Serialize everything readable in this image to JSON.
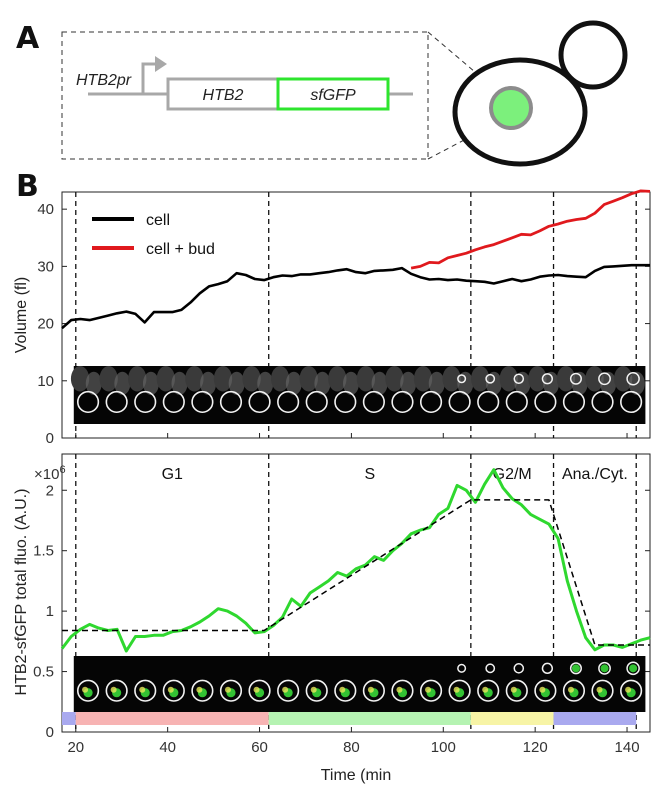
{
  "panel_a": {
    "label": "A",
    "promoter_label": "HTB2pr",
    "gene_label": "HTB2",
    "tag_label": "sfGFP"
  },
  "panel_b": {
    "label": "B"
  },
  "colors": {
    "cell": "#000000",
    "cell_bud": "#e0191d",
    "fluo": "#2fd82f",
    "fit": "#000000",
    "g1_bar": "#f7b3b3",
    "s_bar": "#b5f3b2",
    "g2m_bar": "#f7f4a6",
    "anacyt_bar": "#a9a9ef",
    "pre_bar": "#a9a9ef",
    "gfp_nucleus": "#7cf07c"
  },
  "chart_data": [
    {
      "type": "line",
      "ylabel": "Volume (fl)",
      "xlim": [
        17,
        145
      ],
      "ylim": [
        0,
        43
      ],
      "yticks": [
        0,
        10,
        20,
        30,
        40
      ],
      "grid": false,
      "legend_position": "top-left",
      "series": [
        {
          "name": "cell",
          "x": [
            17,
            19,
            21,
            23,
            25,
            27,
            29,
            31,
            33,
            35,
            37,
            39,
            41,
            43,
            45,
            47,
            49,
            51,
            53,
            55,
            57,
            59,
            61,
            63,
            65,
            67,
            69,
            71,
            73,
            75,
            77,
            79,
            81,
            83,
            85,
            87,
            89,
            91,
            93,
            95,
            97,
            99,
            101,
            103,
            105,
            107,
            109,
            111,
            113,
            115,
            117,
            119,
            121,
            123,
            125,
            127,
            129,
            131,
            133,
            135,
            137,
            139,
            141,
            143,
            145
          ],
          "y": [
            19.2,
            20.6,
            20.8,
            20.6,
            21.0,
            21.4,
            21.8,
            22.1,
            21.7,
            20.2,
            22.0,
            22.0,
            22.0,
            22.4,
            23.7,
            25.3,
            26.5,
            26.9,
            27.4,
            28.8,
            28.5,
            27.8,
            27.6,
            28.1,
            28.4,
            28.3,
            28.6,
            28.6,
            28.8,
            29.0,
            29.3,
            29.5,
            29.0,
            28.8,
            29.2,
            29.3,
            29.4,
            29.7,
            28.7,
            28.1,
            27.7,
            27.8,
            27.6,
            27.7,
            27.5,
            27.4,
            27.3,
            27.0,
            27.4,
            27.8,
            27.4,
            27.7,
            28.2,
            28.4,
            28.5,
            28.3,
            28.2,
            28.1,
            29.2,
            29.9,
            30.0,
            30.1,
            30.2,
            30.2,
            30.2
          ]
        },
        {
          "name": "cell + bud",
          "x": [
            93,
            95,
            97,
            99,
            101,
            103,
            105,
            107,
            109,
            111,
            113,
            115,
            117,
            119,
            121,
            123,
            125,
            127,
            129,
            131,
            133,
            135,
            137,
            139,
            141,
            143,
            145
          ],
          "y": [
            29.7,
            30.0,
            30.7,
            30.6,
            31.5,
            31.9,
            32.3,
            32.9,
            33.4,
            33.8,
            34.4,
            35.0,
            35.6,
            35.5,
            36.2,
            37.0,
            37.4,
            37.9,
            38.2,
            38.4,
            39.3,
            40.8,
            41.4,
            42.0,
            42.7,
            43.2,
            43.1
          ]
        }
      ]
    },
    {
      "type": "line",
      "ylabel": "HTB2-sfGFP total fluo. (A.U.)",
      "xlabel": "Time (min",
      "y_multiplier_label": "×10",
      "y_multiplier_exponent": "6",
      "xlim": [
        17,
        145
      ],
      "ylim": [
        0,
        2.3
      ],
      "yticks": [
        0,
        0.5,
        1,
        1.5,
        2
      ],
      "ytick_labels": [
        "0",
        "0.5",
        "1",
        "1.5",
        "2"
      ],
      "xticks": [
        20,
        40,
        60,
        80,
        100,
        120,
        140
      ],
      "xtick_labels": [
        "20",
        "40",
        "60",
        "80",
        "100",
        "120",
        "140"
      ],
      "grid": false,
      "series": [
        {
          "name": "HTB2-sfGFP",
          "x": [
            17,
            19,
            21,
            23,
            25,
            27,
            29,
            31,
            33,
            35,
            37,
            39,
            41,
            43,
            45,
            47,
            49,
            51,
            53,
            55,
            57,
            59,
            61,
            63,
            65,
            67,
            69,
            71,
            73,
            75,
            77,
            79,
            81,
            83,
            85,
            87,
            89,
            91,
            93,
            95,
            97,
            99,
            101,
            103,
            105,
            107,
            109,
            111,
            113,
            115,
            117,
            119,
            121,
            123,
            125,
            127,
            129,
            131,
            133,
            135,
            137,
            139,
            141,
            143,
            145
          ],
          "y": [
            0.69,
            0.79,
            0.85,
            0.89,
            0.86,
            0.84,
            0.85,
            0.67,
            0.79,
            0.79,
            0.8,
            0.8,
            0.83,
            0.84,
            0.87,
            0.91,
            0.96,
            1.02,
            1.0,
            0.96,
            0.9,
            0.82,
            0.83,
            0.88,
            0.95,
            1.1,
            1.04,
            1.15,
            1.2,
            1.25,
            1.32,
            1.29,
            1.35,
            1.38,
            1.45,
            1.42,
            1.5,
            1.56,
            1.64,
            1.67,
            1.69,
            1.8,
            1.85,
            2.04,
            2.0,
            1.9,
            2.05,
            2.17,
            2.02,
            1.93,
            1.88,
            1.8,
            1.76,
            1.72,
            1.6,
            1.25,
            1.0,
            0.78,
            0.68,
            0.72,
            0.72,
            0.7,
            0.73,
            0.76,
            0.78
          ]
        },
        {
          "name": "fit",
          "x": [
            17,
            61,
            106,
            123,
            133,
            145
          ],
          "y": [
            0.84,
            0.84,
            1.92,
            1.92,
            0.72,
            0.72
          ]
        }
      ]
    }
  ],
  "phases": [
    {
      "label": "G1",
      "start": 20,
      "end": 62
    },
    {
      "label": "S",
      "start": 62,
      "end": 106
    },
    {
      "label": "G2/M",
      "start": 106,
      "end": 124
    },
    {
      "label": "Ana./Cyt.",
      "start": 124,
      "end": 142
    }
  ],
  "legend": [
    {
      "label": "cell"
    },
    {
      "label": "cell + bud"
    }
  ]
}
